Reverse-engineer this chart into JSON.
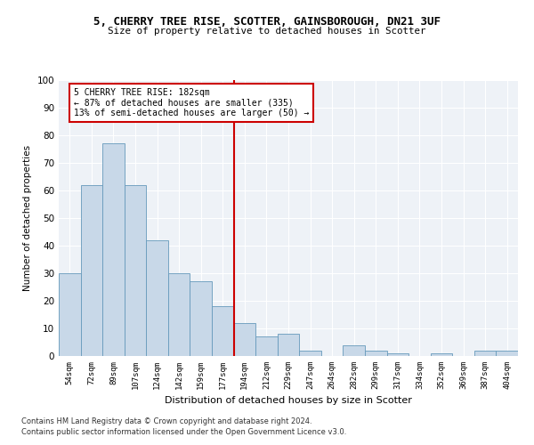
{
  "title1": "5, CHERRY TREE RISE, SCOTTER, GAINSBOROUGH, DN21 3UF",
  "title2": "Size of property relative to detached houses in Scotter",
  "xlabel": "Distribution of detached houses by size in Scotter",
  "ylabel": "Number of detached properties",
  "bar_labels": [
    "54sqm",
    "72sqm",
    "89sqm",
    "107sqm",
    "124sqm",
    "142sqm",
    "159sqm",
    "177sqm",
    "194sqm",
    "212sqm",
    "229sqm",
    "247sqm",
    "264sqm",
    "282sqm",
    "299sqm",
    "317sqm",
    "334sqm",
    "352sqm",
    "369sqm",
    "387sqm",
    "404sqm"
  ],
  "bar_heights": [
    30,
    62,
    77,
    62,
    42,
    30,
    27,
    18,
    12,
    7,
    8,
    2,
    0,
    4,
    2,
    1,
    0,
    1,
    0,
    2,
    2
  ],
  "bar_color": "#c8d8e8",
  "bar_edge_color": "#6699bb",
  "property_line_x": 7.5,
  "annotation_text": "5 CHERRY TREE RISE: 182sqm\n← 87% of detached houses are smaller (335)\n13% of semi-detached houses are larger (50) →",
  "vline_color": "#cc0000",
  "box_edge_color": "#cc0000",
  "ylim": [
    0,
    100
  ],
  "background_color": "#eef2f7",
  "footer1": "Contains HM Land Registry data © Crown copyright and database right 2024.",
  "footer2": "Contains public sector information licensed under the Open Government Licence v3.0."
}
